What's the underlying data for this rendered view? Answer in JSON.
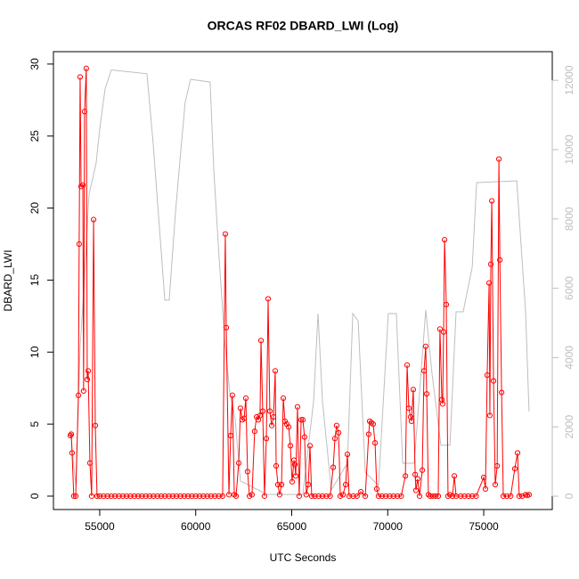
{
  "chart_data": {
    "type": "line",
    "title": "ORCAS RF02 DBARD_LWI (Log)",
    "x_label": "UTC Seconds",
    "y_label": "DBARD_LWI",
    "xlim": [
      52590,
      78570
    ],
    "ylim": [
      -0.93,
      30.86
    ],
    "y2lim": [
      -385,
      12827
    ],
    "xticks": [
      55000,
      60000,
      65000,
      70000,
      75000
    ],
    "yticks": [
      0,
      5,
      10,
      15,
      20,
      25,
      30
    ],
    "y2ticks": [
      0,
      2000,
      4000,
      6000,
      8000,
      10000,
      12000
    ],
    "series": [
      {
        "color": "#ff0000",
        "markers": true,
        "x": [
          53470,
          53520,
          53560,
          53650,
          53750,
          53890,
          53930,
          53980,
          54030,
          54120,
          54160,
          54210,
          54300,
          54350,
          54400,
          54490,
          54580,
          54680,
          54770,
          54860,
          55000,
          55200,
          55400,
          55600,
          55800,
          56000,
          56200,
          56400,
          56600,
          56800,
          57000,
          57200,
          57400,
          57600,
          57800,
          58000,
          58200,
          58400,
          58600,
          58800,
          59000,
          59200,
          59400,
          59600,
          59800,
          60000,
          60200,
          60400,
          60600,
          60800,
          61000,
          61200,
          61400,
          61540,
          61590,
          61730,
          61820,
          61910,
          62010,
          62100,
          62240,
          62330,
          62420,
          62520,
          62610,
          62700,
          62800,
          62930,
          63070,
          63170,
          63260,
          63350,
          63400,
          63490,
          63580,
          63680,
          63770,
          63860,
          63960,
          64050,
          64140,
          64190,
          64280,
          64370,
          64470,
          64560,
          64650,
          64740,
          64840,
          64930,
          65020,
          65120,
          65160,
          65210,
          65300,
          65390,
          65490,
          65580,
          65670,
          65760,
          65860,
          65950,
          66040,
          66200,
          66400,
          66600,
          66800,
          67000,
          67160,
          67250,
          67340,
          67440,
          67530,
          67670,
          67810,
          67900,
          67990,
          68200,
          68400,
          68600,
          68830,
          69010,
          69060,
          69150,
          69240,
          69340,
          69430,
          69520,
          69700,
          69900,
          70100,
          70300,
          70500,
          70700,
          70920,
          71010,
          71100,
          71190,
          71240,
          71330,
          71430,
          71470,
          71560,
          71660,
          71800,
          71890,
          71980,
          72030,
          72120,
          72210,
          72350,
          72490,
          72630,
          72720,
          72820,
          72860,
          72910,
          72960,
          73050,
          73140,
          73240,
          73370,
          73470,
          73560,
          73800,
          74000,
          74200,
          74400,
          74600,
          75000,
          75090,
          75180,
          75280,
          75320,
          75370,
          75420,
          75510,
          75600,
          75700,
          75790,
          75840,
          75930,
          76020,
          76200,
          76400,
          76620,
          76760,
          76850,
          77000,
          77180,
          77270,
          77360
        ],
        "values": [
          4.2,
          4.3,
          3.0,
          0,
          0,
          7.0,
          17.5,
          29.1,
          21.5,
          21.6,
          7.3,
          26.7,
          29.7,
          8.1,
          8.7,
          2.3,
          0,
          19.2,
          4.9,
          0,
          0,
          0,
          0,
          0,
          0,
          0,
          0,
          0,
          0,
          0,
          0,
          0,
          0,
          0,
          0,
          0,
          0,
          0,
          0,
          0,
          0,
          0,
          0,
          0,
          0,
          0,
          0,
          0,
          0,
          0,
          0,
          0,
          0,
          18.2,
          11.7,
          0.1,
          4.2,
          7.0,
          0.1,
          0,
          2.3,
          6.1,
          5.3,
          5.4,
          6.8,
          1.7,
          0,
          0.1,
          4.5,
          5.5,
          5.3,
          5.6,
          10.8,
          5.9,
          0,
          4.0,
          13.7,
          5.9,
          4.9,
          5.5,
          8.7,
          2.1,
          0.8,
          0.1,
          0.8,
          6.8,
          5.2,
          5.0,
          4.8,
          3.5,
          1.0,
          2.5,
          2.2,
          1.4,
          6.2,
          0,
          5.3,
          5.3,
          4.1,
          0.1,
          0.8,
          3.5,
          0,
          0,
          0,
          0,
          0,
          0,
          2.0,
          4.0,
          4.9,
          4.4,
          0,
          0.1,
          0.8,
          2.9,
          0,
          0,
          0,
          0.3,
          0,
          4.3,
          5.2,
          5.1,
          5.0,
          3.7,
          0.5,
          0,
          0,
          0,
          0,
          0,
          0,
          0,
          1.4,
          9.1,
          6.1,
          5.5,
          5.2,
          7.4,
          1.5,
          0.4,
          1.2,
          0,
          1.8,
          8.7,
          10.4,
          7.1,
          0.1,
          0,
          0,
          0,
          0,
          11.6,
          6.7,
          6.4,
          11.4,
          17.8,
          13.3,
          0,
          0.1,
          0,
          1.4,
          0,
          0,
          0,
          0,
          0,
          0,
          1.3,
          0.5,
          8.4,
          14.8,
          5.6,
          16.1,
          20.5,
          8.0,
          0.8,
          2.1,
          23.4,
          16.4,
          7.2,
          0,
          0,
          0,
          1.9,
          3.0,
          0,
          0,
          0.1,
          0.05,
          0.1
        ]
      },
      {
        "color": "#bebebe",
        "axis": "y2",
        "markers": false,
        "x": [
          53470,
          53750,
          53980,
          54210,
          54440,
          54810,
          55000,
          55280,
          55600,
          57460,
          57780,
          58160,
          58390,
          58620,
          58940,
          59220,
          59450,
          59730,
          60750,
          60940,
          61220,
          61500,
          61770,
          62050,
          62330,
          63720,
          65580,
          66140,
          66370,
          66600,
          67060,
          67900,
          68180,
          68460,
          68830,
          69520,
          70030,
          70450,
          70780,
          71380,
          71980,
          72310,
          72770,
          73240,
          73560,
          73930,
          74400,
          74630,
          76720,
          77180,
          77360
        ],
        "values": [
          1900,
          300,
          4300,
          6300,
          8700,
          9600,
          10600,
          11750,
          12300,
          12190,
          10200,
          7380,
          5660,
          5660,
          8150,
          9950,
          11360,
          12030,
          11950,
          9430,
          6860,
          4550,
          3010,
          2240,
          440,
          50,
          50,
          2750,
          5270,
          2750,
          180,
          950,
          5270,
          5060,
          690,
          310,
          5270,
          5270,
          950,
          950,
          5370,
          3520,
          1470,
          1470,
          5320,
          5320,
          6610,
          9050,
          9100,
          5320,
          2440
        ]
      }
    ]
  }
}
